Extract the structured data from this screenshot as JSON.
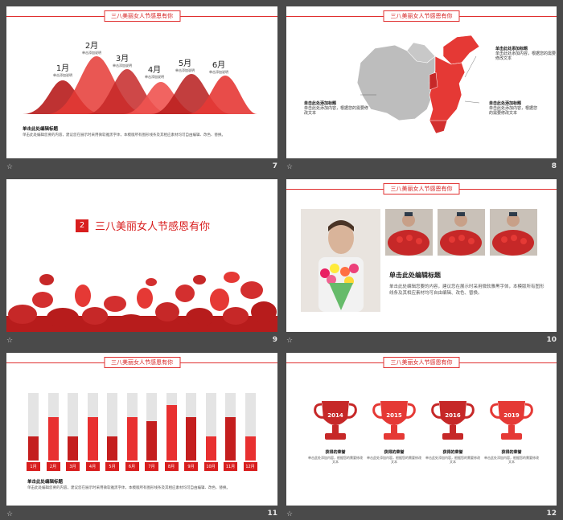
{
  "header_title": "三八美丽女人节感恩有你",
  "strip_star": "☆",
  "slides": [
    {
      "number": "7"
    },
    {
      "number": "8"
    },
    {
      "number": "9"
    },
    {
      "number": "10"
    },
    {
      "number": "11"
    },
    {
      "number": "12"
    }
  ],
  "slide7": {
    "months": [
      "1月",
      "2月",
      "3月",
      "4月",
      "5月",
      "6月"
    ],
    "caption": "单击添加说明",
    "heading": "单击此处编辑标题",
    "body": "单击此处编辑您要的内容，建议您在展示时采用微软雅黑字体，本模版所有图形线条及其相应素材均可自由编辑、改色、替换。"
  },
  "slide8": {
    "label_a_title": "单击此处添加标题",
    "label_a_text": "单击此处添加内容，根据您的需要修改文本",
    "label_b_title": "单击此处添加标题",
    "label_b_text": "单击此处添加内容，根据您的需要修改文本",
    "label_c_title": "单击此处添加标题",
    "label_c_text": "单击此处添加内容，根据您的需要修改文本"
  },
  "slide9": {
    "badge": "2",
    "title": "三八美丽女人节感恩有你"
  },
  "slide10": {
    "heading": "单击此处编辑标题",
    "body": "单击此处编辑您要的内容，建议您在展示时采用微软雅黑字体，本模版所有图形线条及其相应素材均可自由编辑、改色、替换。"
  },
  "slide11": {
    "chart_data": {
      "type": "bar",
      "categories": [
        "1月",
        "2月",
        "3月",
        "4月",
        "5月",
        "6月",
        "7月",
        "8月",
        "9月",
        "10月",
        "11月",
        "12月"
      ],
      "values": [
        30,
        55,
        30,
        55,
        30,
        55,
        50,
        70,
        55,
        30,
        55,
        30
      ],
      "ylim": [
        0,
        85
      ],
      "colors": [
        "#c41e1e",
        "#e83030"
      ]
    },
    "heading": "单击此处编辑标题",
    "body": "单击此处编辑您要的内容，建议您在展示时采用微软雅黑字体，本模版所有图形线条及其相应素材均可自由编辑、改色、替换。"
  },
  "slide12": {
    "trophies": [
      {
        "year": "2014",
        "title": "获得的荣誉",
        "text": "单击此处添加内容，根据您的需要修改文本"
      },
      {
        "year": "2015",
        "title": "获得的荣誉",
        "text": "单击此处添加内容，根据您的需要修改文本"
      },
      {
        "year": "2016",
        "title": "获得的荣誉",
        "text": "单击此处添加内容，根据您的需要修改文本"
      },
      {
        "year": "2019",
        "title": "获得的荣誉",
        "text": "单击此处添加内容，根据您的需要修改文本"
      }
    ]
  },
  "colors": {
    "accent": "#d81e1e",
    "dark_red": "#b71c1c",
    "grey": "#cccccc",
    "bg": "#4a4a4a"
  }
}
